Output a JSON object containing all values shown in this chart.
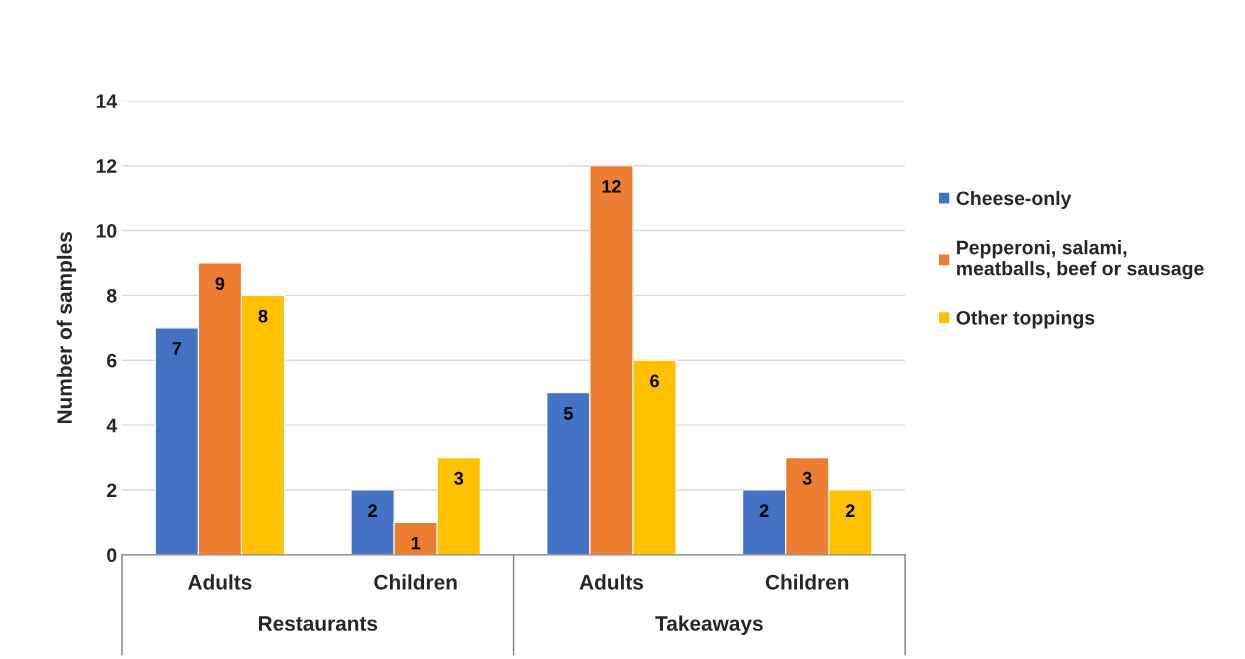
{
  "chart_data": {
    "type": "bar",
    "ylabel": "Number of samples",
    "categories": [
      "Adults",
      "Children",
      "Adults",
      "Children"
    ],
    "annotations": [
      "Restaurants",
      "Takeaways"
    ],
    "series": [
      {
        "name": "Cheese-only",
        "color": "#4472c4",
        "values": [
          7,
          2,
          5,
          2
        ]
      },
      {
        "name": "Pepperoni, salami,\nmeatballs, beef or sausage",
        "color": "#ed7d31",
        "values": [
          9,
          1,
          12,
          3
        ]
      },
      {
        "name": "Other toppings",
        "color": "#ffc000",
        "values": [
          8,
          3,
          6,
          2
        ]
      }
    ],
    "ylim": [
      0,
      14
    ],
    "yticks": [
      0,
      2,
      4,
      6,
      8,
      10,
      12,
      14
    ],
    "grid": "y",
    "legend": "right",
    "data_labels": true
  }
}
